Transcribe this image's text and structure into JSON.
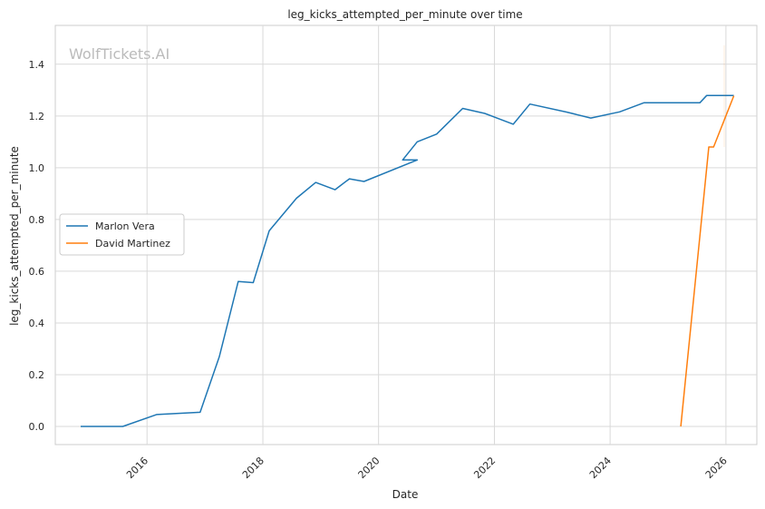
{
  "chart_data": {
    "type": "line",
    "title": "leg_kicks_attempted_per_minute over time",
    "xlabel": "Date",
    "ylabel": "leg_kicks_attempted_per_minute",
    "watermark": "WolfTickets.AI",
    "x_type": "date",
    "xlim": [
      "2014-06-01",
      "2026-07-15"
    ],
    "ylim": [
      -0.07,
      1.55
    ],
    "x_ticks": [
      "2016",
      "2018",
      "2020",
      "2022",
      "2024",
      "2026"
    ],
    "y_ticks": [
      "0.0",
      "0.2",
      "0.4",
      "0.6",
      "0.8",
      "1.0",
      "1.2",
      "1.4"
    ],
    "grid": true,
    "legend_position": "center-left",
    "series": [
      {
        "name": "Marlon Vera",
        "color": "#1f77b4",
        "points": [
          [
            "2014-11-08",
            0.0
          ],
          [
            "2015-08-01",
            0.0
          ],
          [
            "2016-03-01",
            0.046
          ],
          [
            "2016-12-01",
            0.055
          ],
          [
            "2017-04-01",
            0.27
          ],
          [
            "2017-07-29",
            0.56
          ],
          [
            "2017-11-01",
            0.556
          ],
          [
            "2018-02-10",
            0.756
          ],
          [
            "2018-08-01",
            0.882
          ],
          [
            "2018-11-30",
            0.943
          ],
          [
            "2019-04-01",
            0.915
          ],
          [
            "2019-07-01",
            0.957
          ],
          [
            "2019-10-01",
            0.947
          ],
          [
            "2020-09-01",
            1.03
          ],
          [
            "2020-06-01",
            1.03
          ],
          [
            "2020-09-01",
            1.1
          ],
          [
            "2021-01-01",
            1.13
          ],
          [
            "2021-06-15",
            1.229
          ],
          [
            "2021-11-01",
            1.21
          ],
          [
            "2022-04-30",
            1.168
          ],
          [
            "2022-08-13",
            1.246
          ],
          [
            "2023-04-01",
            1.215
          ],
          [
            "2023-09-01",
            1.192
          ],
          [
            "2024-03-01",
            1.216
          ],
          [
            "2024-08-01",
            1.251
          ],
          [
            "2025-06-01",
            1.251
          ],
          [
            "2025-07-20",
            1.251
          ],
          [
            "2025-09-01",
            1.279
          ],
          [
            "2026-02-20",
            1.279
          ]
        ]
      },
      {
        "name": "David Martinez",
        "color": "#ff7f0e",
        "points": [
          [
            "2025-03-22",
            0.0
          ],
          [
            "2025-09-15",
            1.08
          ],
          [
            "2025-10-15",
            1.08
          ],
          [
            "2026-02-20",
            1.278
          ]
        ]
      }
    ]
  }
}
